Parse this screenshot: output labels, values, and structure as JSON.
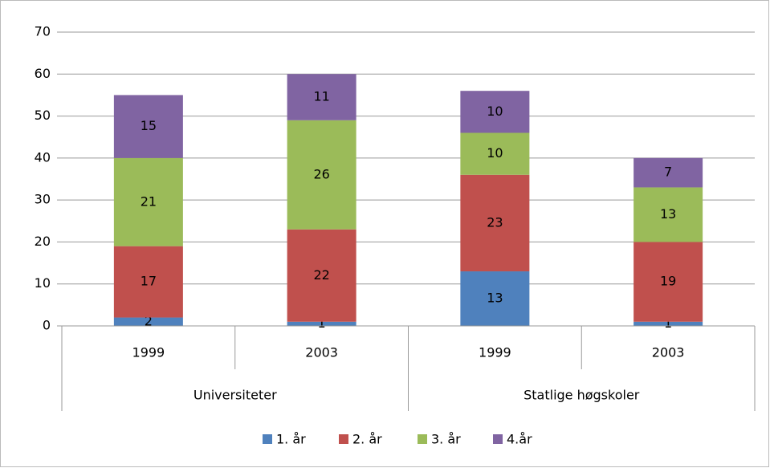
{
  "chart_data": {
    "type": "bar",
    "stacked": true,
    "groups": [
      {
        "name": "Universiteter",
        "categories": [
          "1999",
          "2003"
        ]
      },
      {
        "name": "Statlige høgskoler",
        "categories": [
          "1999",
          "2003"
        ]
      }
    ],
    "series": [
      {
        "name": "1. år",
        "color": "#4f81bd",
        "values": [
          2,
          1,
          13,
          1
        ]
      },
      {
        "name": "2. år",
        "color": "#c0504d",
        "values": [
          17,
          22,
          23,
          19
        ]
      },
      {
        "name": "3. år",
        "color": "#9bbb59",
        "values": [
          21,
          26,
          10,
          13
        ]
      },
      {
        "name": "4.år",
        "color": "#8064a2",
        "values": [
          15,
          11,
          10,
          7
        ]
      }
    ],
    "ylim": [
      0,
      70
    ],
    "yticks": [
      0,
      10,
      20,
      30,
      40,
      50,
      60,
      70
    ],
    "grid": true,
    "legend": "bottom"
  }
}
